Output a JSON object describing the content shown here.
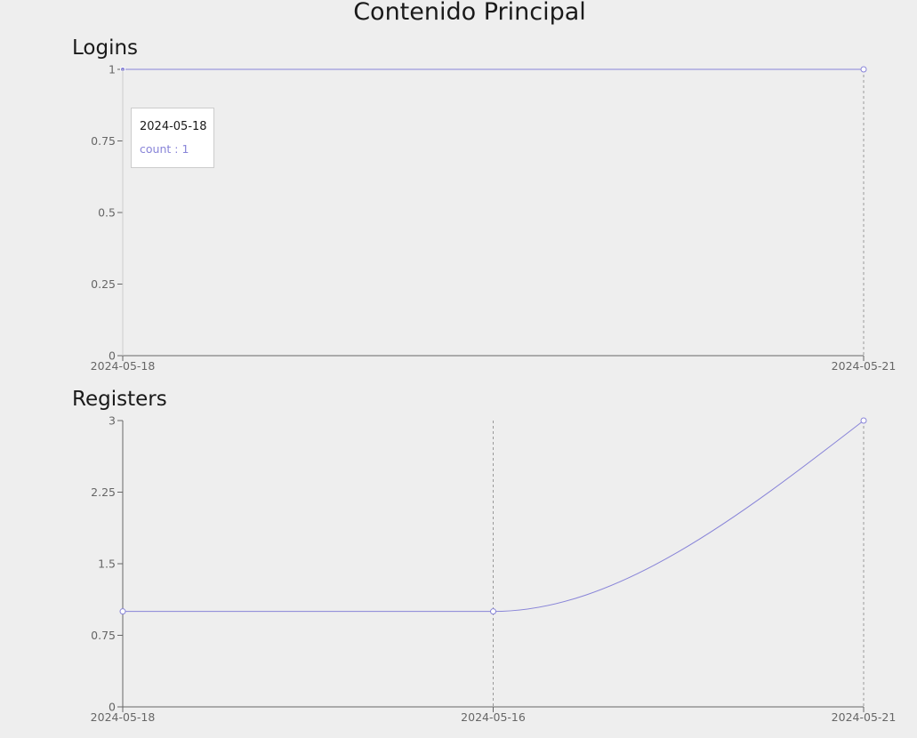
{
  "page": {
    "title": "Contenido Principal"
  },
  "charts": {
    "logins": {
      "title": "Logins"
    },
    "registers": {
      "title": "Registers"
    }
  },
  "tooltip": {
    "label": "2024-05-18",
    "item_name": "count",
    "item_separator": " : ",
    "item_value": "1"
  },
  "colors": {
    "line": "#8884d8",
    "axis": "#666666",
    "grid": "#999999",
    "background": "#eeeeee"
  },
  "chart_data": [
    {
      "type": "line",
      "title": "Logins",
      "x": [
        "2024-05-18",
        "2024-05-21"
      ],
      "series": [
        {
          "values": [
            1,
            1
          ]
        }
      ],
      "yticks": [
        0,
        0.25,
        0.5,
        0.75,
        1
      ],
      "ylim": [
        0,
        1
      ],
      "xlabel": "",
      "ylabel": "",
      "active_index": 0
    },
    {
      "type": "line",
      "title": "Registers",
      "x": [
        "2024-05-18",
        "2024-05-16",
        "2024-05-21"
      ],
      "series": [
        {
          "values": [
            1,
            1,
            3
          ]
        }
      ],
      "yticks": [
        0,
        0.75,
        1.5,
        2.25,
        3
      ],
      "ylim": [
        0,
        3
      ],
      "xlabel": "",
      "ylabel": "",
      "active_index": null
    }
  ]
}
